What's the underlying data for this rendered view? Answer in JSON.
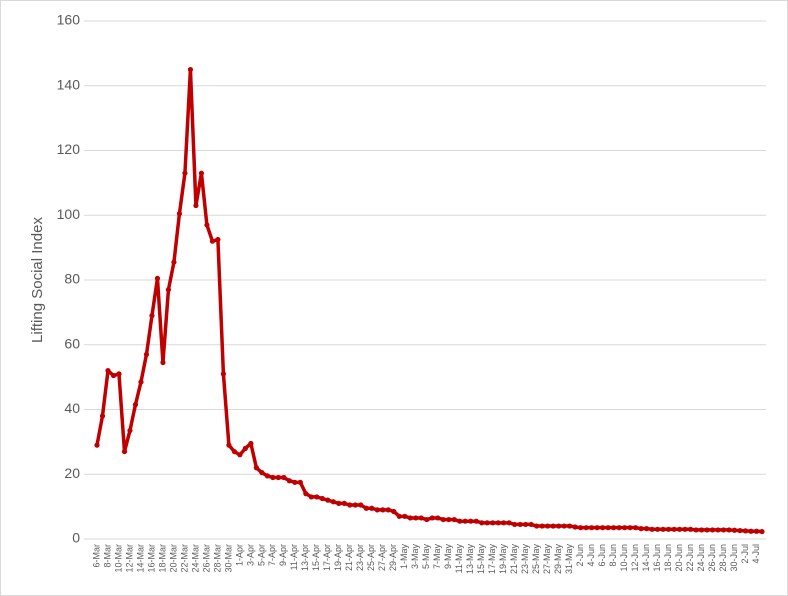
{
  "chart_data": {
    "type": "line",
    "y_label": "Lifting Social Index",
    "categories": [
      "6-Mar",
      null,
      "8-Mar",
      null,
      "10-Mar",
      null,
      "12-Mar",
      null,
      "14-Mar",
      null,
      "16-Mar",
      null,
      "18-Mar",
      null,
      "20-Mar",
      null,
      "22-Mar",
      null,
      "24-Mar",
      null,
      "26-Mar",
      null,
      "28-Mar",
      null,
      "30-Mar",
      null,
      "1-Apr",
      null,
      "3-Apr",
      null,
      "5-Apr",
      null,
      "7-Apr",
      null,
      "9-Apr",
      null,
      "11-Apr",
      null,
      "13-Apr",
      null,
      "15-Apr",
      null,
      "17-Apr",
      null,
      "19-Apr",
      null,
      "21-Apr",
      null,
      "23-Apr",
      null,
      "25-Apr",
      null,
      "27-Apr",
      null,
      "29-Apr",
      null,
      "1-May",
      null,
      "3-May",
      null,
      "5-May",
      null,
      "7-May",
      null,
      "9-May",
      null,
      "11-May",
      null,
      "13-May",
      null,
      "15-May",
      null,
      "17-May",
      null,
      "19-May",
      null,
      "21-May",
      null,
      "23-May",
      null,
      "25-May",
      null,
      "27-May",
      null,
      "29-May",
      null,
      "31-May",
      null,
      "2-Jun",
      null,
      "4-Jun",
      null,
      "6-Jun",
      null,
      "8-Jun",
      null,
      "10-Jun",
      null,
      "12-Jun",
      null,
      "14-Jun",
      null,
      "16-Jun",
      null,
      "18-Jun",
      null,
      "20-Jun",
      null,
      "22-Jun",
      null,
      "24-Jun",
      null,
      "26-Jun",
      null,
      "28-Jun",
      null,
      "30-Jun",
      null,
      "2-Jul",
      null,
      "4-Jul",
      null
    ],
    "values": [
      29,
      38,
      52,
      50.5,
      51,
      27,
      33.5,
      41.5,
      48.5,
      57,
      69,
      80.5,
      54.5,
      77,
      85.5,
      100.5,
      113,
      145,
      103,
      113,
      97,
      92,
      92.5,
      51,
      29,
      27,
      26,
      28,
      29.5,
      22,
      20.5,
      19.5,
      19,
      19,
      19,
      18,
      17.5,
      17.5,
      14,
      13,
      13,
      12.5,
      12,
      11.5,
      11,
      11,
      10.5,
      10.5,
      10.5,
      9.5,
      9.5,
      9,
      9,
      9,
      8.5,
      7,
      7,
      6.5,
      6.5,
      6.5,
      6,
      6.5,
      6.5,
      6,
      6,
      6,
      5.5,
      5.5,
      5.5,
      5.5,
      5,
      5,
      5,
      5,
      5,
      5,
      4.5,
      4.5,
      4.5,
      4.5,
      4,
      4,
      4,
      4,
      4,
      4,
      4,
      3.7,
      3.5,
      3.5,
      3.5,
      3.5,
      3.5,
      3.5,
      3.5,
      3.5,
      3.5,
      3.5,
      3.5,
      3.2,
      3.2,
      3,
      3,
      3,
      3,
      3,
      3,
      3,
      3,
      2.8,
      2.8,
      2.8,
      2.8,
      2.8,
      2.8,
      2.8,
      2.7,
      2.6,
      2.5,
      2.4,
      2.4,
      2.3
    ],
    "color": "#c00000",
    "ylim": [
      0,
      160
    ],
    "yticks": [
      0,
      20,
      40,
      60,
      80,
      100,
      120,
      140,
      160
    ],
    "grid": true
  }
}
